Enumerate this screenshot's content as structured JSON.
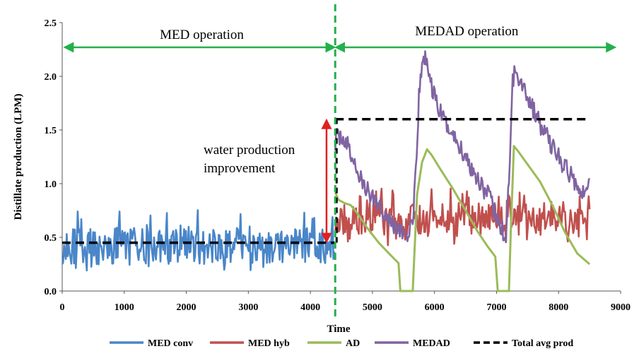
{
  "chart_data": {
    "type": "line",
    "title": "",
    "xlabel": "Time",
    "ylabel": "Distillate production (LPM)",
    "xlim": [
      0,
      9000
    ],
    "ylim": [
      0,
      2.5
    ],
    "x_ticks": [
      "0",
      "1000",
      "2000",
      "3000",
      "4000",
      "5000",
      "6000",
      "7000",
      "8000",
      "9000"
    ],
    "y_ticks": [
      "0.0",
      "0.5",
      "1.0",
      "1.5",
      "2.0",
      "2.5"
    ],
    "grid": false,
    "legend_position": "bottom",
    "colors": {
      "med_conv": "#4a86c8",
      "med_hyb": "#c0504d",
      "ad": "#9bbb59",
      "medad": "#8064a2",
      "total_avg": "#000000",
      "phase_arrow": "#22b04a",
      "divider": "#22b04a",
      "improvement_arrow": "#e02020"
    },
    "annotations": {
      "med_phase": "MED operation",
      "medad_phase": "MEDAD operation",
      "improvement": [
        "water production",
        "improvement"
      ],
      "switch_x": 4400,
      "phase_arrow_y": 2.27,
      "med_phase_xrange": [
        50,
        4380
      ],
      "medad_phase_xrange": [
        4420,
        8900
      ],
      "improvement_arrow": {
        "x": 4260,
        "y_from": 0.45,
        "y_to": 1.6
      }
    },
    "series": [
      {
        "name": "MED conv",
        "x": [
          0,
          4400
        ],
        "mean": 0.42,
        "amplitude": 0.17,
        "peaks_high": 0.77,
        "peaks_low": 0.19,
        "noise_seed": 11
      },
      {
        "name": "MED hyb",
        "x": [
          4400,
          8500
        ],
        "mean": 0.67,
        "amplitude": 0.15,
        "peaks_high": 0.96,
        "peaks_low": 0.42,
        "noise_seed": 23
      },
      {
        "name": "AD",
        "points": [
          [
            4400,
            0.92
          ],
          [
            4450,
            0.85
          ],
          [
            4550,
            0.82
          ],
          [
            4650,
            0.8
          ],
          [
            4750,
            0.73
          ],
          [
            4900,
            0.6
          ],
          [
            5100,
            0.45
          ],
          [
            5300,
            0.33
          ],
          [
            5420,
            0.26
          ],
          [
            5450,
            0.0
          ],
          [
            5520,
            0.0
          ],
          [
            5550,
            0.0
          ],
          [
            5650,
            0.0
          ],
          [
            5680,
            0.4
          ],
          [
            5720,
            0.9
          ],
          [
            5800,
            1.2
          ],
          [
            5880,
            1.32
          ],
          [
            5950,
            1.27
          ],
          [
            6100,
            1.13
          ],
          [
            6300,
            0.95
          ],
          [
            6500,
            0.75
          ],
          [
            6700,
            0.55
          ],
          [
            6850,
            0.42
          ],
          [
            6980,
            0.32
          ],
          [
            7020,
            0.0
          ],
          [
            7150,
            0.0
          ],
          [
            7200,
            0.0
          ],
          [
            7230,
            0.55
          ],
          [
            7280,
            1.35
          ],
          [
            7350,
            1.3
          ],
          [
            7500,
            1.18
          ],
          [
            7700,
            1.02
          ],
          [
            7900,
            0.8
          ],
          [
            8100,
            0.55
          ],
          [
            8300,
            0.35
          ],
          [
            8500,
            0.25
          ]
        ]
      },
      {
        "name": "MEDAD",
        "points": [
          [
            4400,
            1.4
          ],
          [
            4500,
            1.45
          ],
          [
            4600,
            1.35
          ],
          [
            4700,
            1.2
          ],
          [
            4800,
            1.05
          ],
          [
            4950,
            0.9
          ],
          [
            5100,
            0.82
          ],
          [
            5250,
            0.68
          ],
          [
            5400,
            0.58
          ],
          [
            5550,
            0.52
          ],
          [
            5650,
            0.6
          ],
          [
            5700,
            1.1
          ],
          [
            5750,
            1.8
          ],
          [
            5800,
            2.1
          ],
          [
            5850,
            2.2
          ],
          [
            5950,
            1.9
          ],
          [
            6100,
            1.65
          ],
          [
            6300,
            1.45
          ],
          [
            6500,
            1.25
          ],
          [
            6700,
            1.05
          ],
          [
            6900,
            0.85
          ],
          [
            7050,
            0.6
          ],
          [
            7150,
            0.5
          ],
          [
            7200,
            1.0
          ],
          [
            7260,
            1.95
          ],
          [
            7300,
            2.08
          ],
          [
            7400,
            1.95
          ],
          [
            7550,
            1.75
          ],
          [
            7700,
            1.55
          ],
          [
            7900,
            1.35
          ],
          [
            8100,
            1.15
          ],
          [
            8300,
            1.0
          ],
          [
            8450,
            0.9
          ],
          [
            8500,
            1.05
          ]
        ],
        "noise_amplitude": 0.09,
        "noise_seed": 37
      },
      {
        "name": "Total avg prod",
        "segments": [
          {
            "x": [
              0,
              4400
            ],
            "y": 0.45
          },
          {
            "x": [
              4400,
              8500
            ],
            "y": 1.6
          }
        ],
        "style": "dashed"
      }
    ]
  }
}
